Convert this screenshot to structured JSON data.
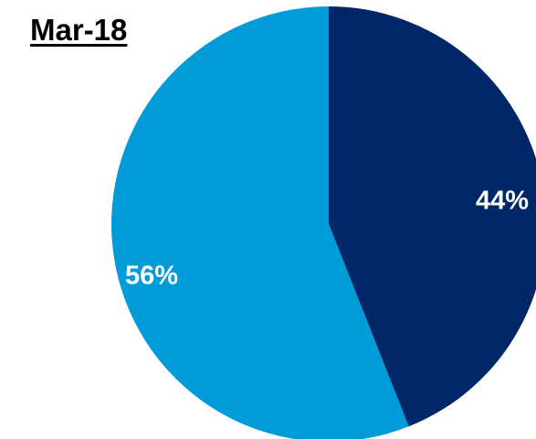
{
  "chart_data": {
    "type": "pie",
    "title": "Mar-18",
    "slices": [
      {
        "value": 44,
        "label": "44%",
        "color": "#002868"
      },
      {
        "value": 56,
        "label": "56%",
        "color": "#009CDA"
      }
    ],
    "legend": "none"
  }
}
